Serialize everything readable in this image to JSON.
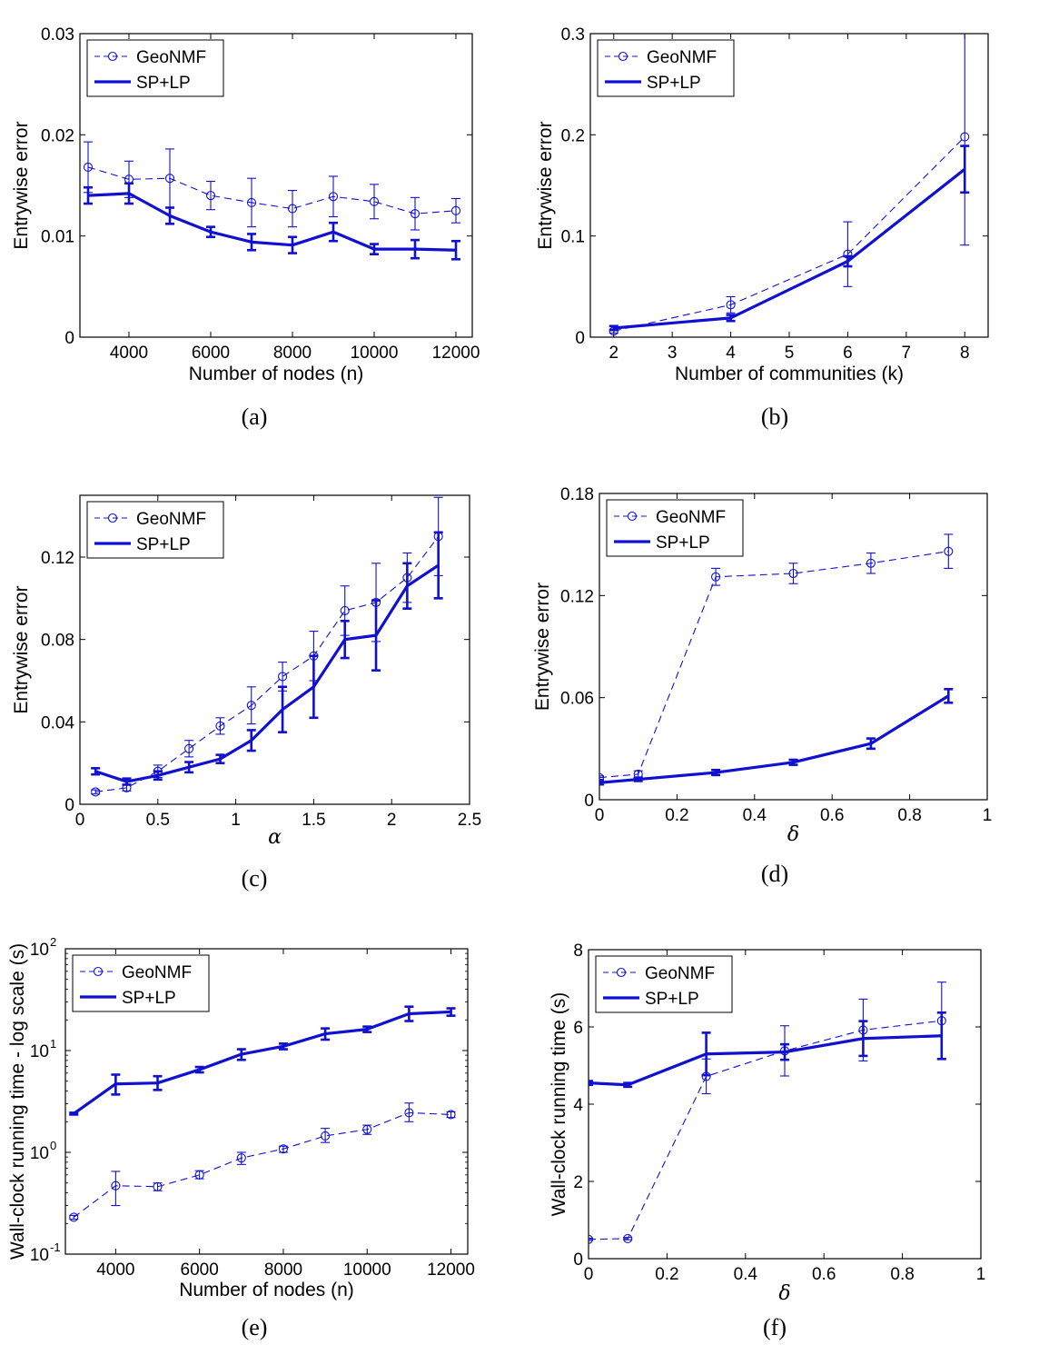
{
  "chart_data": [
    {
      "type": "line",
      "caption": "(a)",
      "xlabel": "Number of nodes (n)",
      "ylabel": "Entrywise error",
      "xlim": [
        2800,
        12400
      ],
      "ylim": [
        0,
        0.03
      ],
      "yscale": "linear",
      "xticks": [
        4000,
        6000,
        8000,
        10000,
        12000
      ],
      "xtick_labels": [
        "4000",
        "6000",
        "8000",
        "10000",
        "12000"
      ],
      "yticks": [
        0,
        0.01,
        0.02,
        0.03
      ],
      "ytick_labels": [
        "0",
        "0.01",
        "0.02",
        "0.03"
      ],
      "legend": {
        "position": "top-left",
        "entries": [
          "GeoNMF",
          "SP+LP"
        ]
      },
      "series": [
        {
          "name": "GeoNMF",
          "style": "dashed-circle",
          "x": [
            3000,
            4000,
            5000,
            6000,
            7000,
            8000,
            9000,
            10000,
            11000,
            12000
          ],
          "y": [
            0.0168,
            0.0156,
            0.0157,
            0.014,
            0.0133,
            0.0127,
            0.0139,
            0.0134,
            0.0122,
            0.0125
          ],
          "err": [
            0.0025,
            0.0018,
            0.0029,
            0.0014,
            0.0024,
            0.0018,
            0.002,
            0.0017,
            0.0016,
            0.0012
          ]
        },
        {
          "name": "SP+LP",
          "style": "solid-thick",
          "x": [
            3000,
            4000,
            5000,
            6000,
            7000,
            8000,
            9000,
            10000,
            11000,
            12000
          ],
          "y": [
            0.014,
            0.0142,
            0.012,
            0.0104,
            0.0094,
            0.0091,
            0.0104,
            0.0087,
            0.0087,
            0.0086
          ],
          "err": [
            0.0008,
            0.001,
            0.0008,
            0.0005,
            0.0008,
            0.0008,
            0.0009,
            0.0005,
            0.0009,
            0.0009
          ]
        }
      ]
    },
    {
      "type": "line",
      "caption": "(b)",
      "xlabel": "Number of communities (k)",
      "ylabel": "Entrywise error",
      "xlim": [
        1.6,
        8.4
      ],
      "ylim": [
        0,
        0.3
      ],
      "yscale": "linear",
      "xticks": [
        2,
        3,
        4,
        5,
        6,
        7,
        8
      ],
      "xtick_labels": [
        "2",
        "3",
        "4",
        "5",
        "6",
        "7",
        "8"
      ],
      "yticks": [
        0,
        0.1,
        0.2,
        0.3
      ],
      "ytick_labels": [
        "0",
        "0.1",
        "0.2",
        "0.3"
      ],
      "legend": {
        "position": "top-left",
        "entries": [
          "GeoNMF",
          "SP+LP"
        ]
      },
      "series": [
        {
          "name": "GeoNMF",
          "style": "dashed-circle",
          "x": [
            2,
            4,
            6,
            8
          ],
          "y": [
            0.006,
            0.032,
            0.082,
            0.198
          ],
          "err": [
            0.002,
            0.008,
            0.032,
            0.107
          ]
        },
        {
          "name": "SP+LP",
          "style": "solid-thick",
          "x": [
            2,
            4,
            6,
            8
          ],
          "y": [
            0.009,
            0.019,
            0.075,
            0.166
          ],
          "err": [
            0.002,
            0.003,
            0.005,
            0.023
          ]
        }
      ]
    },
    {
      "type": "line",
      "caption": "(c)",
      "xlabel": "α",
      "ylabel": "Entrywise error",
      "xlim": [
        0,
        2.5
      ],
      "ylim": [
        0,
        0.15
      ],
      "yscale": "linear",
      "xticks": [
        0,
        0.5,
        1,
        1.5,
        2,
        2.5
      ],
      "xtick_labels": [
        "0",
        "0.5",
        "1",
        "1.5",
        "2",
        "2.5"
      ],
      "yticks": [
        0,
        0.04,
        0.08,
        0.12
      ],
      "ytick_labels": [
        "0",
        "0.04",
        "0.08",
        "0.12"
      ],
      "legend": {
        "position": "top-left",
        "entries": [
          "GeoNMF",
          "SP+LP"
        ]
      },
      "series": [
        {
          "name": "GeoNMF",
          "style": "dashed-circle",
          "x": [
            0.1,
            0.3,
            0.5,
            0.7,
            0.9,
            1.1,
            1.3,
            1.5,
            1.7,
            1.9,
            2.1,
            2.3
          ],
          "y": [
            0.006,
            0.008,
            0.016,
            0.027,
            0.038,
            0.048,
            0.062,
            0.072,
            0.094,
            0.098,
            0.11,
            0.13
          ],
          "err": [
            0.001,
            0.0015,
            0.003,
            0.004,
            0.004,
            0.009,
            0.007,
            0.012,
            0.012,
            0.019,
            0.012,
            0.019
          ]
        },
        {
          "name": "SP+LP",
          "style": "solid-thick",
          "x": [
            0.1,
            0.3,
            0.5,
            0.7,
            0.9,
            1.1,
            1.3,
            1.5,
            1.7,
            1.9,
            2.1,
            2.3
          ],
          "y": [
            0.016,
            0.011,
            0.014,
            0.018,
            0.022,
            0.031,
            0.046,
            0.057,
            0.08,
            0.082,
            0.106,
            0.116
          ],
          "err": [
            0.0015,
            0.0015,
            0.002,
            0.0025,
            0.002,
            0.005,
            0.011,
            0.015,
            0.009,
            0.017,
            0.011,
            0.016
          ]
        }
      ]
    },
    {
      "type": "line",
      "caption": "(d)",
      "xlabel": "δ",
      "ylabel": "Entrywise error",
      "xlim": [
        0,
        1
      ],
      "ylim": [
        0,
        0.18
      ],
      "yscale": "linear",
      "xticks": [
        0,
        0.2,
        0.4,
        0.6,
        0.8,
        1
      ],
      "xtick_labels": [
        "0",
        "0.2",
        "0.4",
        "0.6",
        "0.8",
        "1"
      ],
      "yticks": [
        0,
        0.06,
        0.12,
        0.18
      ],
      "ytick_labels": [
        "0",
        "0.06",
        "0.12",
        "0.18"
      ],
      "legend": {
        "position": "top-left",
        "entries": [
          "GeoNMF",
          "SP+LP"
        ]
      },
      "series": [
        {
          "name": "GeoNMF",
          "style": "dashed-circle",
          "x": [
            0,
            0.1,
            0.3,
            0.5,
            0.7,
            0.9
          ],
          "y": [
            0.013,
            0.015,
            0.131,
            0.133,
            0.139,
            0.146
          ],
          "err": [
            0.001,
            0.002,
            0.005,
            0.006,
            0.006,
            0.01
          ]
        },
        {
          "name": "SP+LP",
          "style": "solid-thick",
          "x": [
            0,
            0.1,
            0.3,
            0.5,
            0.7,
            0.9
          ],
          "y": [
            0.01,
            0.012,
            0.016,
            0.022,
            0.033,
            0.061
          ],
          "err": [
            0.001,
            0.001,
            0.0015,
            0.0015,
            0.003,
            0.004
          ]
        }
      ]
    },
    {
      "type": "line",
      "caption": "(e)",
      "xlabel": "Number of nodes (n)",
      "ylabel": "Wall-clock running time - log scale (s)",
      "xlim": [
        2800,
        12400
      ],
      "ylim": [
        0.1,
        100
      ],
      "yscale": "log",
      "xticks": [
        4000,
        6000,
        8000,
        10000,
        12000
      ],
      "xtick_labels": [
        "4000",
        "6000",
        "8000",
        "10000",
        "12000"
      ],
      "yticks": [
        0.1,
        1,
        10,
        100
      ],
      "ytick_labels": [
        {
          "base": "10",
          "exp": "-1"
        },
        {
          "base": "10",
          "exp": "0"
        },
        {
          "base": "10",
          "exp": "1"
        },
        {
          "base": "10",
          "exp": "2"
        }
      ],
      "legend": {
        "position": "top-left",
        "entries": [
          "GeoNMF",
          "SP+LP"
        ]
      },
      "series": [
        {
          "name": "GeoNMF",
          "style": "dashed-circle",
          "x": [
            3000,
            4000,
            5000,
            6000,
            7000,
            8000,
            9000,
            10000,
            11000,
            12000
          ],
          "y": [
            0.23,
            0.47,
            0.46,
            0.6,
            0.88,
            1.08,
            1.45,
            1.68,
            2.45,
            2.35
          ],
          "err_low": [
            0.22,
            0.3,
            0.42,
            0.55,
            0.76,
            1.0,
            1.25,
            1.5,
            2.0,
            2.2
          ],
          "err_high": [
            0.24,
            0.65,
            0.5,
            0.66,
            1.0,
            1.15,
            1.72,
            1.85,
            3.05,
            2.5
          ]
        },
        {
          "name": "SP+LP",
          "style": "solid-thick",
          "x": [
            3000,
            4000,
            5000,
            6000,
            7000,
            8000,
            9000,
            10000,
            11000,
            12000
          ],
          "y": [
            2.4,
            4.7,
            4.8,
            6.5,
            9.2,
            11.0,
            14.6,
            16.2,
            23.0,
            24.0
          ],
          "err_low": [
            2.35,
            3.7,
            4.1,
            6.1,
            8.1,
            10.3,
            12.8,
            15.2,
            19.5,
            22.0
          ],
          "err_high": [
            2.45,
            5.8,
            5.6,
            6.9,
            10.3,
            11.7,
            16.5,
            17.2,
            27.0,
            26.0
          ]
        }
      ]
    },
    {
      "type": "line",
      "caption": "(f)",
      "xlabel": "δ",
      "ylabel": "Wall-clock running time (s)",
      "xlim": [
        0,
        1
      ],
      "ylim": [
        0,
        8
      ],
      "yscale": "linear",
      "xticks": [
        0,
        0.2,
        0.4,
        0.6,
        0.8,
        1
      ],
      "xtick_labels": [
        "0",
        "0.2",
        "0.4",
        "0.6",
        "0.8",
        "1"
      ],
      "yticks": [
        0,
        2,
        4,
        6,
        8
      ],
      "ytick_labels": [
        "0",
        "2",
        "4",
        "6",
        "8"
      ],
      "legend": {
        "position": "top-left",
        "entries": [
          "GeoNMF",
          "SP+LP"
        ]
      },
      "series": [
        {
          "name": "GeoNMF",
          "style": "dashed-circle",
          "x": [
            0,
            0.1,
            0.3,
            0.5,
            0.7,
            0.9
          ],
          "y": [
            0.5,
            0.52,
            4.72,
            5.38,
            5.92,
            6.16
          ],
          "err": [
            0.03,
            0.03,
            0.45,
            0.65,
            0.8,
            1.0
          ]
        },
        {
          "name": "SP+LP",
          "style": "solid-thick",
          "x": [
            0,
            0.1,
            0.3,
            0.5,
            0.7,
            0.9
          ],
          "y": [
            4.55,
            4.5,
            5.3,
            5.35,
            5.7,
            5.77
          ],
          "err": [
            0.05,
            0.05,
            0.55,
            0.2,
            0.45,
            0.6
          ]
        }
      ]
    }
  ]
}
